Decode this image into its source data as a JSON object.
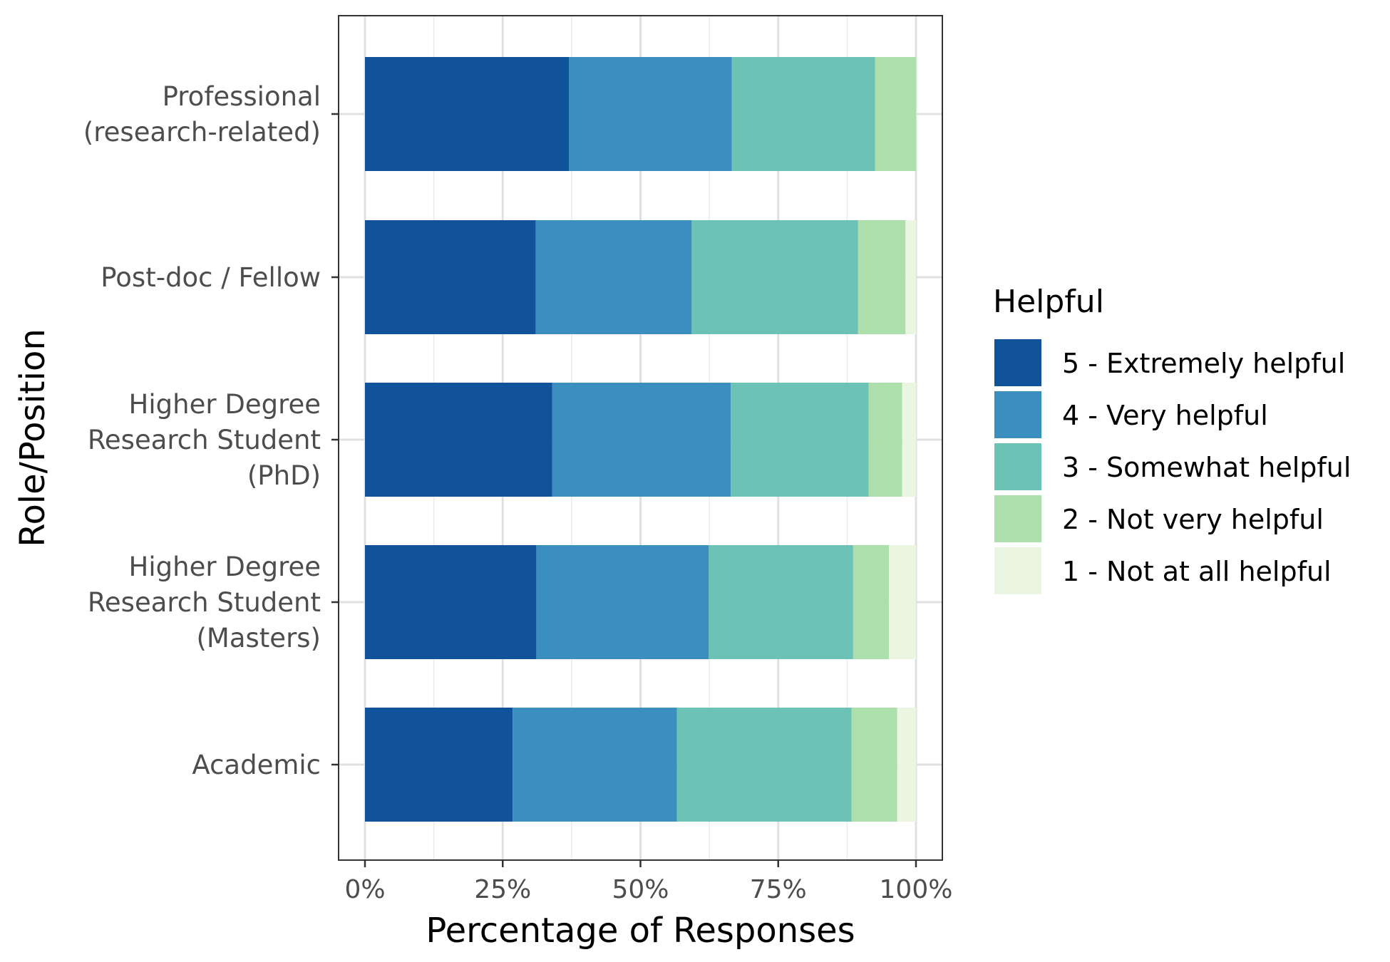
{
  "chart_data": {
    "type": "bar",
    "orientation": "horizontal",
    "stacked": true,
    "xlabel": "Percentage of Responses",
    "ylabel": "Role/Position",
    "xlim": [
      0,
      100
    ],
    "x_ticks": [
      "0%",
      "25%",
      "50%",
      "75%",
      "100%"
    ],
    "grid": true,
    "legend_position": "right",
    "legend_title": "Helpful",
    "categories": [
      [
        "Professional",
        "(research-related)"
      ],
      [
        "Post-doc / Fellow"
      ],
      [
        "Higher Degree",
        "Research Student",
        "(PhD)"
      ],
      [
        "Higher Degree",
        "Research Student",
        "(Masters)"
      ],
      [
        "Academic"
      ]
    ],
    "series": [
      {
        "name": "5 - Extremely helpful",
        "color": "#10539b",
        "values": [
          37.0,
          31.0,
          34.0,
          31.1,
          26.8
        ]
      },
      {
        "name": "4 - Very helpful",
        "color": "#3b8fbf",
        "values": [
          29.6,
          28.3,
          32.4,
          31.3,
          29.8
        ]
      },
      {
        "name": "3 - Somewhat helpful",
        "color": "#6cc3b5",
        "values": [
          26.0,
          30.2,
          25.0,
          26.2,
          31.7
        ]
      },
      {
        "name": "2 - Not very helpful",
        "color": "#addfad",
        "values": [
          7.4,
          8.6,
          6.1,
          6.5,
          8.3
        ]
      },
      {
        "name": "1 - Not at all helpful",
        "color": "#ebf6e2",
        "values": [
          0.0,
          1.9,
          2.5,
          4.9,
          3.4
        ]
      }
    ]
  }
}
